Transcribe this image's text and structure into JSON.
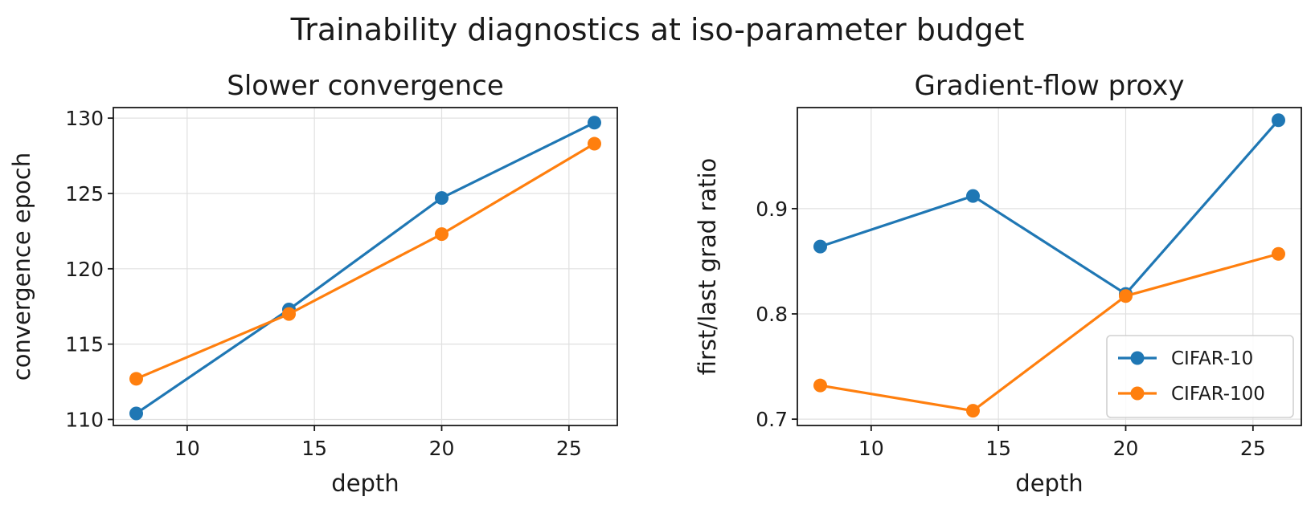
{
  "figure": {
    "title": "Trainability diagnostics at iso-parameter budget"
  },
  "colors": {
    "CIFAR-10": "#1f77b4",
    "CIFAR-100": "#ff7f0e"
  },
  "chart_data": [
    {
      "type": "line",
      "title": "Slower convergence",
      "xlabel": "depth",
      "ylabel": "convergence epoch",
      "x": [
        8,
        14,
        20,
        26
      ],
      "xlim": [
        7.1,
        26.9
      ],
      "ylim": [
        109.6,
        130.7
      ],
      "xticks": [
        10,
        15,
        20,
        25
      ],
      "yticks": [
        110,
        115,
        120,
        125,
        130
      ],
      "grid": true,
      "legend": null,
      "series": [
        {
          "name": "CIFAR-10",
          "values": [
            110.4,
            117.3,
            124.7,
            129.7
          ]
        },
        {
          "name": "CIFAR-100",
          "values": [
            112.7,
            117.0,
            122.3,
            128.3
          ]
        }
      ]
    },
    {
      "type": "line",
      "title": "Gradient-flow proxy",
      "xlabel": "depth",
      "ylabel": "first/last grad ratio",
      "x": [
        8,
        14,
        20,
        26
      ],
      "xlim": [
        7.1,
        26.9
      ],
      "ylim": [
        0.694,
        0.996
      ],
      "xticks": [
        10,
        15,
        20,
        25
      ],
      "yticks": [
        0.7,
        0.8,
        0.9
      ],
      "grid": true,
      "legend": "lower-right",
      "series": [
        {
          "name": "CIFAR-10",
          "values": [
            0.864,
            0.912,
            0.819,
            0.984
          ]
        },
        {
          "name": "CIFAR-100",
          "values": [
            0.732,
            0.708,
            0.817,
            0.857
          ]
        }
      ]
    }
  ]
}
